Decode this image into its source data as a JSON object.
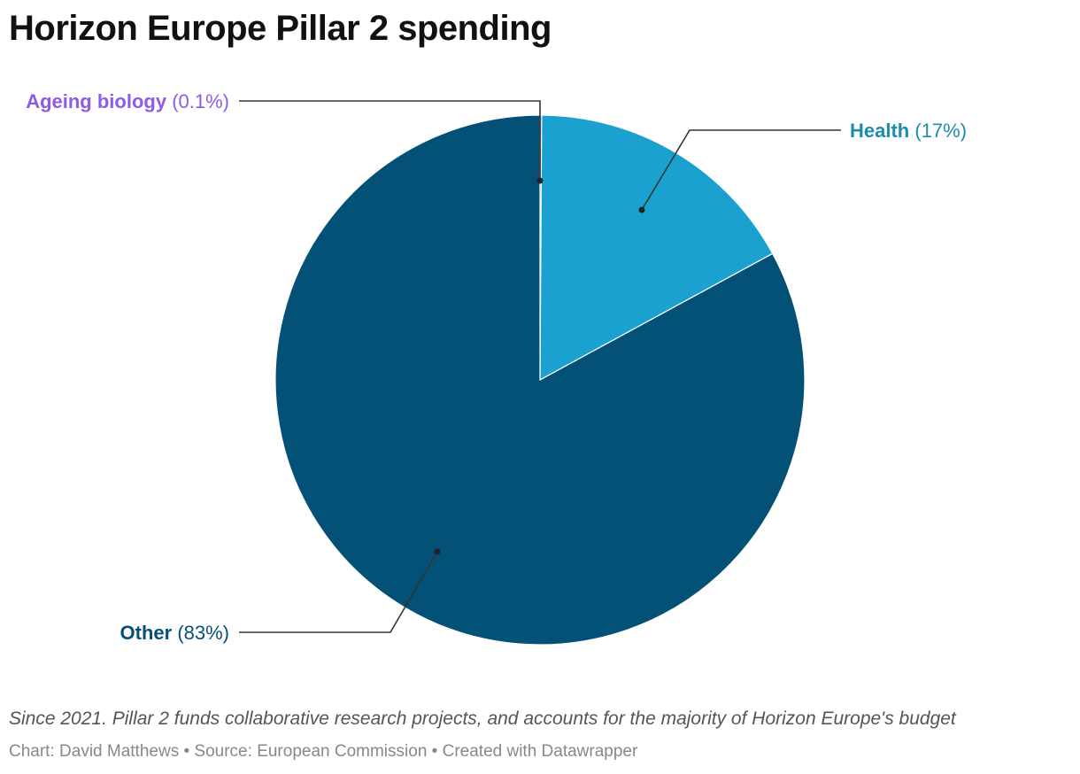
{
  "title": "Horizon Europe Pillar 2 spending",
  "chart_data": {
    "type": "pie",
    "title": "Horizon Europe Pillar 2 spending",
    "slices": [
      {
        "name": "Ageing biology",
        "value": 0.1,
        "value_label": "(0.1%)",
        "color": "#8f5be2",
        "fill": "#8f5be2"
      },
      {
        "name": "Health",
        "value": 17,
        "value_label": "(17%)",
        "color": "#1b8bb0",
        "fill": "#1ba1cf"
      },
      {
        "name": "Other",
        "value": 83,
        "value_label": "(83%)",
        "color": "#064f77",
        "fill": "#035177"
      }
    ]
  },
  "notes": "Since 2021. Pillar 2 funds collaborative research projects, and accounts for the majority of Horizon Europe's budget",
  "footer": {
    "chart_prefix": "Chart:",
    "author": "David Matthews",
    "sep": "•",
    "source_prefix": "Source:",
    "source": "European Commission",
    "created": "Created with Datawrapper"
  },
  "colors": {
    "title": "#111111",
    "leader_line": "#333333",
    "notes": "#555555",
    "footer": "#888888"
  }
}
